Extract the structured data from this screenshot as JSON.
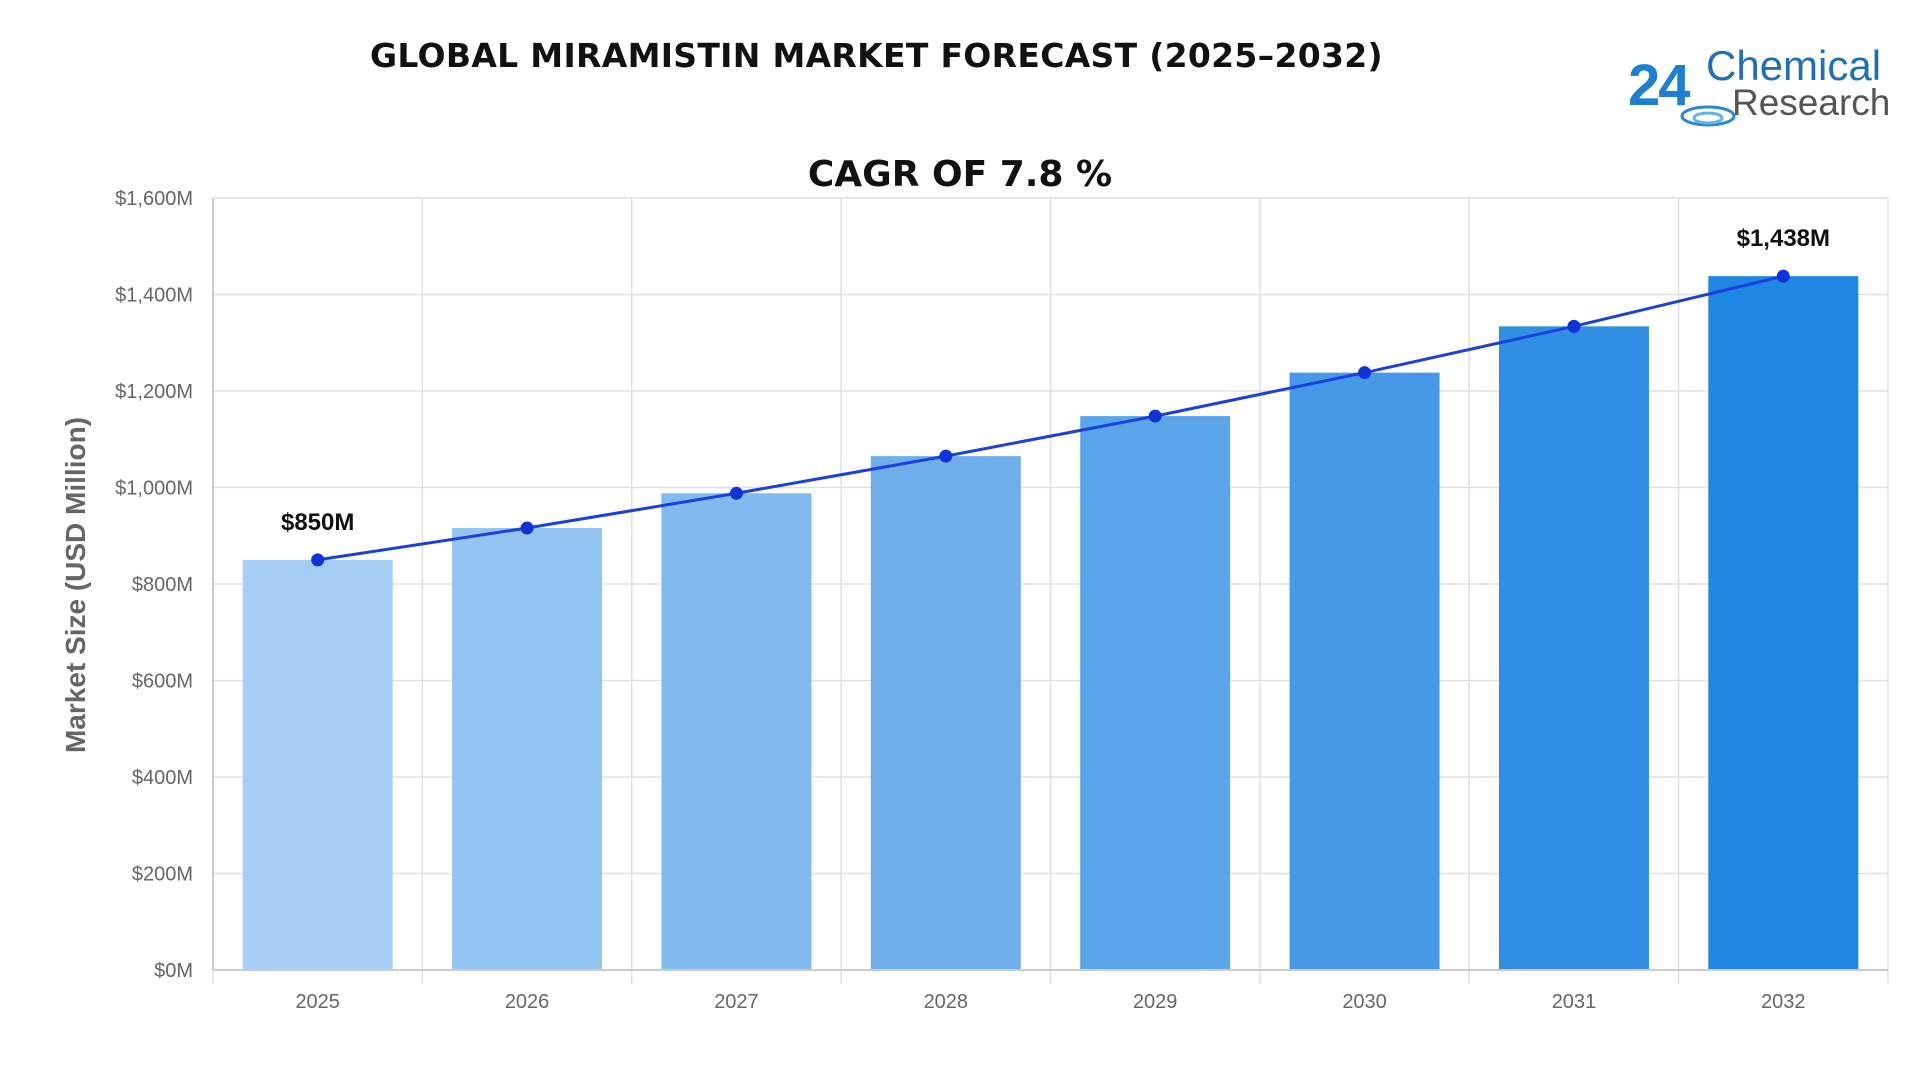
{
  "header": {
    "title": "GLOBAL MIRAMISTIN MARKET FORECAST (2025–2032)",
    "logo_number": "24",
    "logo_line1": "Chemical",
    "logo_line2": "Research"
  },
  "chart_data": {
    "type": "bar",
    "title": "GLOBAL MIRAMISTIN MARKET FORECAST (2025–2032)",
    "subtitle": "CAGR OF 7.8 %",
    "xlabel": "",
    "ylabel": "Market Size (USD Million)",
    "ylim": [
      0,
      1600
    ],
    "yticks": [
      0,
      200,
      400,
      600,
      800,
      1000,
      1200,
      1400,
      1600
    ],
    "ytick_labels": [
      "$0M",
      "$200M",
      "$400M",
      "$600M",
      "$800M",
      "$1,000M",
      "$1,200M",
      "$1,400M",
      "$1,600M"
    ],
    "categories": [
      "2025",
      "2026",
      "2027",
      "2028",
      "2029",
      "2030",
      "2031",
      "2032"
    ],
    "values": [
      850,
      916,
      988,
      1065,
      1148,
      1238,
      1334,
      1438
    ],
    "line_overlay": true,
    "annotations": [
      {
        "index": 0,
        "text": "$850M"
      },
      {
        "index": 7,
        "text": "$1,438M"
      }
    ],
    "grid": true,
    "colors": {
      "bars": [
        "#a6cdf4",
        "#94c4f2",
        "#80baef",
        "#6daeeb",
        "#5ba5e9",
        "#4599e6",
        "#308fe3",
        "#1e87e1"
      ],
      "line": "#1c3fe0",
      "marker": "#1033d8",
      "grid": "#e0e0e0",
      "axis": "#cccccc"
    }
  }
}
